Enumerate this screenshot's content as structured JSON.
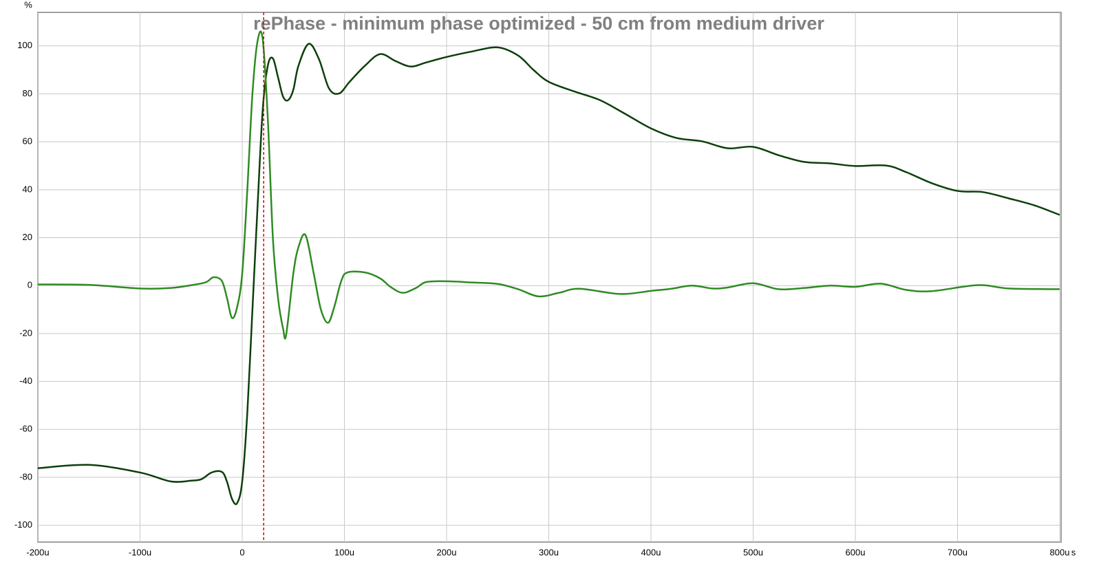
{
  "chart_data": {
    "type": "line",
    "title": "rePhase - minimum phase optimized - 50 cm from medium driver",
    "ylabel": "%",
    "xlabel": "s",
    "xlim": [
      -200,
      800
    ],
    "ylim": [
      -107,
      114
    ],
    "xticks": [
      {
        "value": -200,
        "label": "-200u"
      },
      {
        "value": -100,
        "label": "-100u"
      },
      0,
      {
        "value": 100,
        "label": "100u"
      },
      {
        "value": 200,
        "label": "200u"
      },
      {
        "value": 300,
        "label": "300u"
      },
      {
        "value": 400,
        "label": "400u"
      },
      {
        "value": 500,
        "label": "500u"
      },
      {
        "value": 600,
        "label": "600u"
      },
      {
        "value": 700,
        "label": "700u"
      },
      {
        "value": 800,
        "label": "800u"
      }
    ],
    "yticks": [
      100,
      80,
      60,
      40,
      20,
      0,
      -20,
      -40,
      -60,
      -80,
      -100
    ],
    "grid": true,
    "cursor_x": 21,
    "cursor_color": "#e00000",
    "series": [
      {
        "color": "#0b3f0b",
        "x": [
          -200,
          -150,
          -100,
          -70,
          -50,
          -40,
          -30,
          -20,
          -15,
          -10,
          -5,
          0,
          5,
          10,
          15,
          20,
          25,
          30,
          35,
          40,
          45,
          50,
          55,
          65,
          75,
          85,
          95,
          105,
          120,
          135,
          150,
          165,
          180,
          200,
          225,
          250,
          270,
          285,
          300,
          325,
          350,
          375,
          400,
          425,
          450,
          475,
          500,
          525,
          550,
          575,
          600,
          630,
          650,
          675,
          700,
          725,
          750,
          775,
          800
        ],
        "values": [
          -76.2,
          -74.8,
          -78,
          -81.7,
          -81.4,
          -80.8,
          -78,
          -77.7,
          -81.7,
          -89,
          -90.8,
          -81.7,
          -53,
          -10,
          33,
          73,
          91.7,
          94.8,
          87,
          78.8,
          77.4,
          81.7,
          91.7,
          100.9,
          94.6,
          82.2,
          80.2,
          85,
          91.7,
          96.6,
          93.7,
          91.4,
          93.1,
          95.4,
          97.7,
          99.4,
          96,
          90,
          85,
          81,
          77.4,
          71.6,
          65.6,
          61.6,
          60.2,
          57.3,
          57.9,
          54.4,
          51.6,
          51,
          49.9,
          50.1,
          47.3,
          42.7,
          39.5,
          39,
          36.4,
          33.5,
          29.5
        ]
      },
      {
        "color": "#2e8b22",
        "x": [
          -200,
          -150,
          -100,
          -70,
          -45,
          -35,
          -28,
          -20,
          -15,
          -10,
          -5,
          0,
          5,
          10,
          15,
          20,
          25,
          30,
          35,
          40,
          43,
          50,
          55,
          62,
          70,
          77,
          84,
          90,
          97,
          103,
          120,
          135,
          145,
          157,
          170,
          180,
          200,
          225,
          250,
          270,
          290,
          310,
          330,
          370,
          400,
          420,
          440,
          460,
          475,
          500,
          525,
          550,
          575,
          600,
          625,
          650,
          675,
          720,
          750,
          800
        ],
        "values": [
          0.5,
          0.3,
          -1.2,
          -1,
          0.5,
          1.5,
          3.5,
          2,
          -5,
          -13.5,
          -9,
          5,
          40,
          80,
          102,
          103,
          70,
          20,
          -5,
          -18,
          -20.5,
          5,
          16,
          21,
          5,
          -10,
          -15.5,
          -9,
          2,
          5.5,
          5.5,
          3,
          -0.5,
          -3,
          -1,
          1.5,
          1.8,
          1.3,
          0.7,
          -1.5,
          -4.5,
          -3,
          -1.3,
          -3.5,
          -2.2,
          -1.3,
          0,
          -1.2,
          -0.8,
          1,
          -1.5,
          -1,
          0,
          -0.5,
          0.8,
          -1.8,
          -2.3,
          0.2,
          -1.2,
          -1.5
        ]
      }
    ]
  }
}
